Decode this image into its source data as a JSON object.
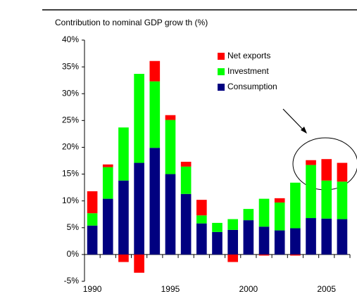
{
  "chart_data": {
    "type": "stacked_bar",
    "title": "Contribution to nominal GDP grow th (%)",
    "categories": [
      "1990",
      null,
      null,
      null,
      null,
      "1995",
      null,
      null,
      null,
      null,
      "2000",
      null,
      null,
      null,
      null,
      "2005",
      null
    ],
    "series": [
      {
        "name": "Consumption",
        "color": "#000080",
        "values": [
          5.4,
          10.4,
          13.8,
          17.1,
          19.9,
          15.0,
          11.3,
          5.8,
          4.2,
          4.6,
          6.4,
          5.2,
          4.5,
          4.9,
          6.8,
          6.7,
          6.6
        ]
      },
      {
        "name": "Investment",
        "color": "#00ff00",
        "values": [
          2.3,
          5.9,
          9.9,
          16.6,
          12.4,
          10.1,
          5.1,
          1.5,
          1.7,
          2.0,
          2.1,
          5.2,
          5.2,
          8.5,
          9.9,
          7.1,
          7.0
        ]
      },
      {
        "name": "Net exports",
        "color": "#ff0000",
        "values": [
          4.1,
          0.5,
          -1.4,
          -3.4,
          3.8,
          0.9,
          0.9,
          2.9,
          0,
          -1.4,
          0,
          -0.2,
          0.8,
          -0.2,
          0.9,
          4.0,
          3.5
        ]
      }
    ],
    "ylim": [
      -5,
      40
    ],
    "yticks": [
      {
        "value": -5,
        "label": "-5%"
      },
      {
        "value": 0,
        "label": "0%"
      },
      {
        "value": 5,
        "label": "5%"
      },
      {
        "value": 10,
        "label": "10%"
      },
      {
        "value": 15,
        "label": "15%"
      },
      {
        "value": 20,
        "label": "20%"
      },
      {
        "value": 25,
        "label": "25%"
      },
      {
        "value": 30,
        "label": "30%"
      },
      {
        "value": 35,
        "label": "35%"
      },
      {
        "value": 40,
        "label": "40%"
      }
    ],
    "legend": "top"
  }
}
